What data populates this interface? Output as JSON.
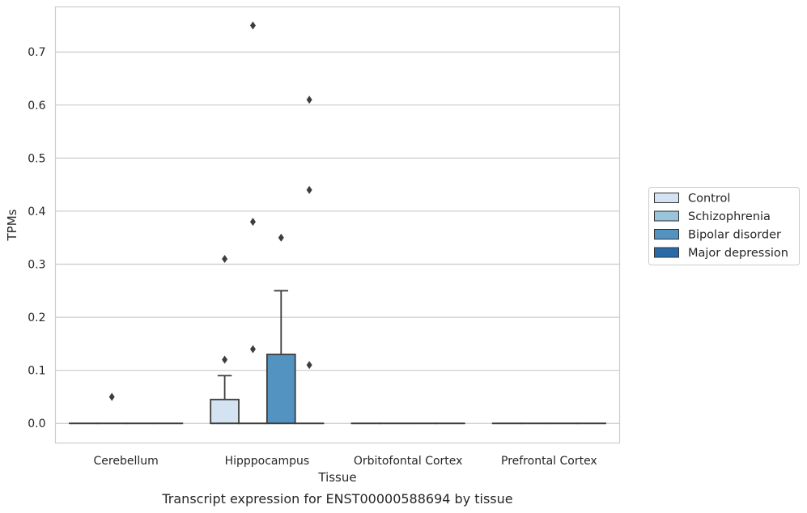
{
  "chart_data": {
    "type": "box",
    "categories": [
      "Cerebellum",
      "Hipppocampus",
      "Orbitofontal Cortex",
      "Prefrontal Cortex"
    ],
    "xlabel": "Tissue",
    "ylabel": "TPMs",
    "caption": "Transcript expression for ENST00000588694 by tissue",
    "ylim": [
      -0.037,
      0.785
    ],
    "yticks": [
      0.0,
      0.1,
      0.2,
      0.3,
      0.4,
      0.5,
      0.6,
      0.7
    ],
    "ytick_labels": [
      "0.0",
      "0.1",
      "0.2",
      "0.3",
      "0.4",
      "0.5",
      "0.6",
      "0.7"
    ],
    "grid": "horizontal",
    "legend": {
      "placement": "right"
    },
    "series": [
      {
        "name": "Control",
        "color": "#d3e3f2",
        "boxes": [
          {
            "q1": 0,
            "median": 0,
            "q3": 0,
            "whisker_low": 0,
            "whisker_high": 0,
            "outliers": []
          },
          {
            "q1": 0,
            "median": 0,
            "q3": 0.045,
            "whisker_low": 0,
            "whisker_high": 0.09,
            "outliers": [
              0.12,
              0.31
            ]
          },
          {
            "q1": 0,
            "median": 0,
            "q3": 0,
            "whisker_low": 0,
            "whisker_high": 0,
            "outliers": []
          },
          {
            "q1": 0,
            "median": 0,
            "q3": 0,
            "whisker_low": 0,
            "whisker_high": 0,
            "outliers": []
          }
        ]
      },
      {
        "name": "Schizophrenia",
        "color": "#9ac3dc",
        "boxes": [
          {
            "q1": 0,
            "median": 0,
            "q3": 0,
            "whisker_low": 0,
            "whisker_high": 0,
            "outliers": [
              0.05
            ]
          },
          {
            "q1": 0,
            "median": 0,
            "q3": 0,
            "whisker_low": 0,
            "whisker_high": 0,
            "outliers": [
              0.14,
              0.38,
              0.75
            ]
          },
          {
            "q1": 0,
            "median": 0,
            "q3": 0,
            "whisker_low": 0,
            "whisker_high": 0,
            "outliers": []
          },
          {
            "q1": 0,
            "median": 0,
            "q3": 0,
            "whisker_low": 0,
            "whisker_high": 0,
            "outliers": []
          }
        ]
      },
      {
        "name": "Bipolar disorder",
        "color": "#5293c2",
        "boxes": [
          {
            "q1": 0,
            "median": 0,
            "q3": 0,
            "whisker_low": 0,
            "whisker_high": 0,
            "outliers": []
          },
          {
            "q1": 0,
            "median": 0,
            "q3": 0.13,
            "whisker_low": 0,
            "whisker_high": 0.25,
            "outliers": [
              0.35
            ]
          },
          {
            "q1": 0,
            "median": 0,
            "q3": 0,
            "whisker_low": 0,
            "whisker_high": 0,
            "outliers": []
          },
          {
            "q1": 0,
            "median": 0,
            "q3": 0,
            "whisker_low": 0,
            "whisker_high": 0,
            "outliers": []
          }
        ]
      },
      {
        "name": "Major depression",
        "color": "#2a6aa8",
        "boxes": [
          {
            "q1": 0,
            "median": 0,
            "q3": 0,
            "whisker_low": 0,
            "whisker_high": 0,
            "outliers": []
          },
          {
            "q1": 0,
            "median": 0,
            "q3": 0,
            "whisker_low": 0,
            "whisker_high": 0,
            "outliers": [
              0.11,
              0.44,
              0.61
            ]
          },
          {
            "q1": 0,
            "median": 0,
            "q3": 0,
            "whisker_low": 0,
            "whisker_high": 0,
            "outliers": []
          },
          {
            "q1": 0,
            "median": 0,
            "q3": 0,
            "whisker_low": 0,
            "whisker_high": 0,
            "outliers": []
          }
        ]
      }
    ],
    "colors": {
      "grid": "#cccccc",
      "frame": "#cccccc",
      "box_edge": "#3d3d3d",
      "outlier": "#3d3d3d"
    }
  }
}
